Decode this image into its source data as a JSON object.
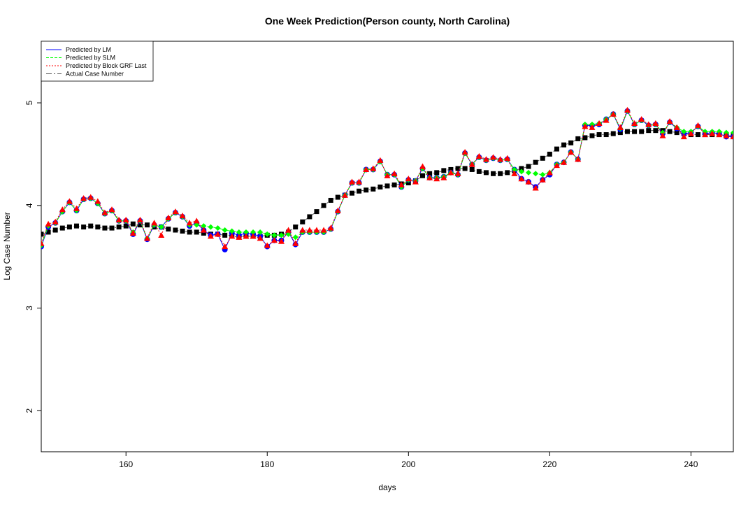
{
  "chart_data": {
    "type": "line",
    "title": "One Week Prediction(Person county, North Carolina)",
    "xlabel": "days",
    "ylabel": "Log Case Number",
    "xlim": [
      148,
      246
    ],
    "ylim": [
      1.6,
      5.6
    ],
    "xticks": [
      160,
      180,
      200,
      220,
      240
    ],
    "yticks": [
      2,
      3,
      4,
      5
    ],
    "grid": false,
    "legend_position": "top-left",
    "x": [
      148,
      149,
      150,
      151,
      152,
      153,
      154,
      155,
      156,
      157,
      158,
      159,
      160,
      161,
      162,
      163,
      164,
      165,
      166,
      167,
      168,
      169,
      170,
      171,
      172,
      173,
      174,
      175,
      176,
      177,
      178,
      179,
      180,
      181,
      182,
      183,
      184,
      185,
      186,
      187,
      188,
      189,
      190,
      191,
      192,
      193,
      194,
      195,
      196,
      197,
      198,
      199,
      200,
      201,
      202,
      203,
      204,
      205,
      206,
      207,
      208,
      209,
      210,
      211,
      212,
      213,
      214,
      215,
      216,
      217,
      218,
      219,
      220,
      221,
      222,
      223,
      224,
      225,
      226,
      227,
      228,
      229,
      230,
      231,
      232,
      233,
      234,
      235,
      236,
      237,
      238,
      239,
      240,
      241,
      242,
      243,
      244,
      245,
      246
    ],
    "series": [
      {
        "name": "Predicted by LM",
        "color": "#0000ff",
        "marker": "circle",
        "values": [
          3.6,
          3.79,
          3.83,
          3.94,
          4.03,
          3.95,
          4.06,
          4.07,
          4.02,
          3.92,
          3.95,
          3.85,
          3.85,
          3.72,
          3.85,
          3.67,
          3.81,
          3.79,
          3.87,
          3.93,
          3.89,
          3.8,
          3.83,
          3.76,
          3.71,
          3.72,
          3.57,
          3.73,
          3.71,
          3.73,
          3.72,
          3.7,
          3.6,
          3.66,
          3.66,
          3.74,
          3.62,
          3.74,
          3.74,
          3.74,
          3.74,
          3.77,
          3.94,
          4.1,
          4.22,
          4.22,
          4.35,
          4.35,
          4.43,
          4.3,
          4.3,
          4.18,
          4.25,
          4.24,
          4.36,
          4.27,
          4.27,
          4.28,
          4.32,
          4.3,
          4.51,
          4.4,
          4.47,
          4.44,
          4.46,
          4.44,
          4.45,
          4.35,
          4.26,
          4.23,
          4.18,
          4.25,
          4.3,
          4.4,
          4.42,
          4.52,
          4.45,
          4.78,
          4.78,
          4.79,
          4.84,
          4.89,
          4.74,
          4.92,
          4.79,
          4.83,
          4.78,
          4.79,
          4.7,
          4.81,
          4.75,
          4.7,
          4.71,
          4.77,
          4.7,
          4.71,
          4.7,
          4.67,
          4.67
        ]
      },
      {
        "name": "Predicted by SLM",
        "color": "#00ff00",
        "marker": "diamond",
        "values": [
          3.61,
          3.8,
          3.83,
          3.94,
          4.03,
          3.95,
          4.06,
          4.07,
          4.02,
          3.92,
          3.95,
          3.85,
          3.85,
          3.74,
          3.85,
          3.68,
          3.81,
          3.79,
          3.87,
          3.93,
          3.89,
          3.81,
          3.81,
          3.8,
          3.79,
          3.78,
          3.76,
          3.75,
          3.74,
          3.74,
          3.74,
          3.74,
          3.72,
          3.71,
          3.71,
          3.72,
          3.69,
          3.74,
          3.74,
          3.74,
          3.74,
          3.77,
          3.94,
          4.1,
          4.22,
          4.22,
          4.35,
          4.35,
          4.43,
          4.3,
          4.3,
          4.18,
          4.25,
          4.24,
          4.36,
          4.27,
          4.27,
          4.28,
          4.32,
          4.3,
          4.51,
          4.4,
          4.47,
          4.44,
          4.46,
          4.44,
          4.45,
          4.35,
          4.33,
          4.32,
          4.31,
          4.3,
          4.32,
          4.4,
          4.42,
          4.52,
          4.45,
          4.79,
          4.79,
          4.8,
          4.84,
          4.89,
          4.75,
          4.92,
          4.79,
          4.83,
          4.78,
          4.79,
          4.71,
          4.81,
          4.76,
          4.72,
          4.72,
          4.77,
          4.72,
          4.72,
          4.72,
          4.71,
          4.71
        ]
      },
      {
        "name": "Predicted by Block GRF Last",
        "color": "#ff0000",
        "marker": "triangle",
        "values": [
          3.63,
          3.82,
          3.84,
          3.96,
          4.04,
          3.97,
          4.07,
          4.08,
          4.04,
          3.93,
          3.96,
          3.86,
          3.86,
          3.73,
          3.86,
          3.68,
          3.83,
          3.71,
          3.88,
          3.94,
          3.9,
          3.83,
          3.85,
          3.76,
          3.7,
          3.72,
          3.6,
          3.7,
          3.69,
          3.7,
          3.7,
          3.68,
          3.61,
          3.66,
          3.65,
          3.76,
          3.63,
          3.76,
          3.76,
          3.76,
          3.76,
          3.78,
          3.95,
          4.1,
          4.23,
          4.23,
          4.35,
          4.36,
          4.44,
          4.29,
          4.31,
          4.2,
          4.26,
          4.23,
          4.38,
          4.27,
          4.26,
          4.27,
          4.32,
          4.31,
          4.52,
          4.4,
          4.48,
          4.45,
          4.47,
          4.45,
          4.46,
          4.31,
          4.26,
          4.23,
          4.17,
          4.25,
          4.32,
          4.39,
          4.42,
          4.52,
          4.45,
          4.77,
          4.76,
          4.8,
          4.83,
          4.89,
          4.76,
          4.93,
          4.8,
          4.84,
          4.79,
          4.8,
          4.68,
          4.82,
          4.76,
          4.67,
          4.7,
          4.78,
          4.69,
          4.7,
          4.69,
          4.68,
          4.67
        ]
      },
      {
        "name": "Actual Case Number",
        "color": "#000000",
        "marker": "square",
        "values": [
          3.72,
          3.74,
          3.76,
          3.78,
          3.79,
          3.8,
          3.79,
          3.8,
          3.79,
          3.78,
          3.78,
          3.79,
          3.8,
          3.82,
          3.81,
          3.81,
          3.79,
          3.79,
          3.77,
          3.76,
          3.75,
          3.74,
          3.74,
          3.73,
          3.72,
          3.72,
          3.71,
          3.71,
          3.7,
          3.7,
          3.7,
          3.7,
          3.71,
          3.71,
          3.72,
          3.74,
          3.79,
          3.84,
          3.89,
          3.94,
          4.0,
          4.05,
          4.08,
          4.1,
          4.12,
          4.14,
          4.15,
          4.16,
          4.18,
          4.19,
          4.2,
          4.21,
          4.22,
          4.24,
          4.29,
          4.31,
          4.32,
          4.34,
          4.35,
          4.36,
          4.36,
          4.35,
          4.33,
          4.32,
          4.31,
          4.31,
          4.32,
          4.34,
          4.36,
          4.38,
          4.42,
          4.46,
          4.5,
          4.55,
          4.59,
          4.61,
          4.65,
          4.66,
          4.68,
          4.69,
          4.69,
          4.7,
          4.71,
          4.72,
          4.72,
          4.72,
          4.73,
          4.73,
          4.73,
          4.72,
          4.71,
          4.7,
          4.69,
          4.69,
          4.69,
          4.69,
          4.69,
          4.68,
          4.68
        ]
      }
    ]
  }
}
